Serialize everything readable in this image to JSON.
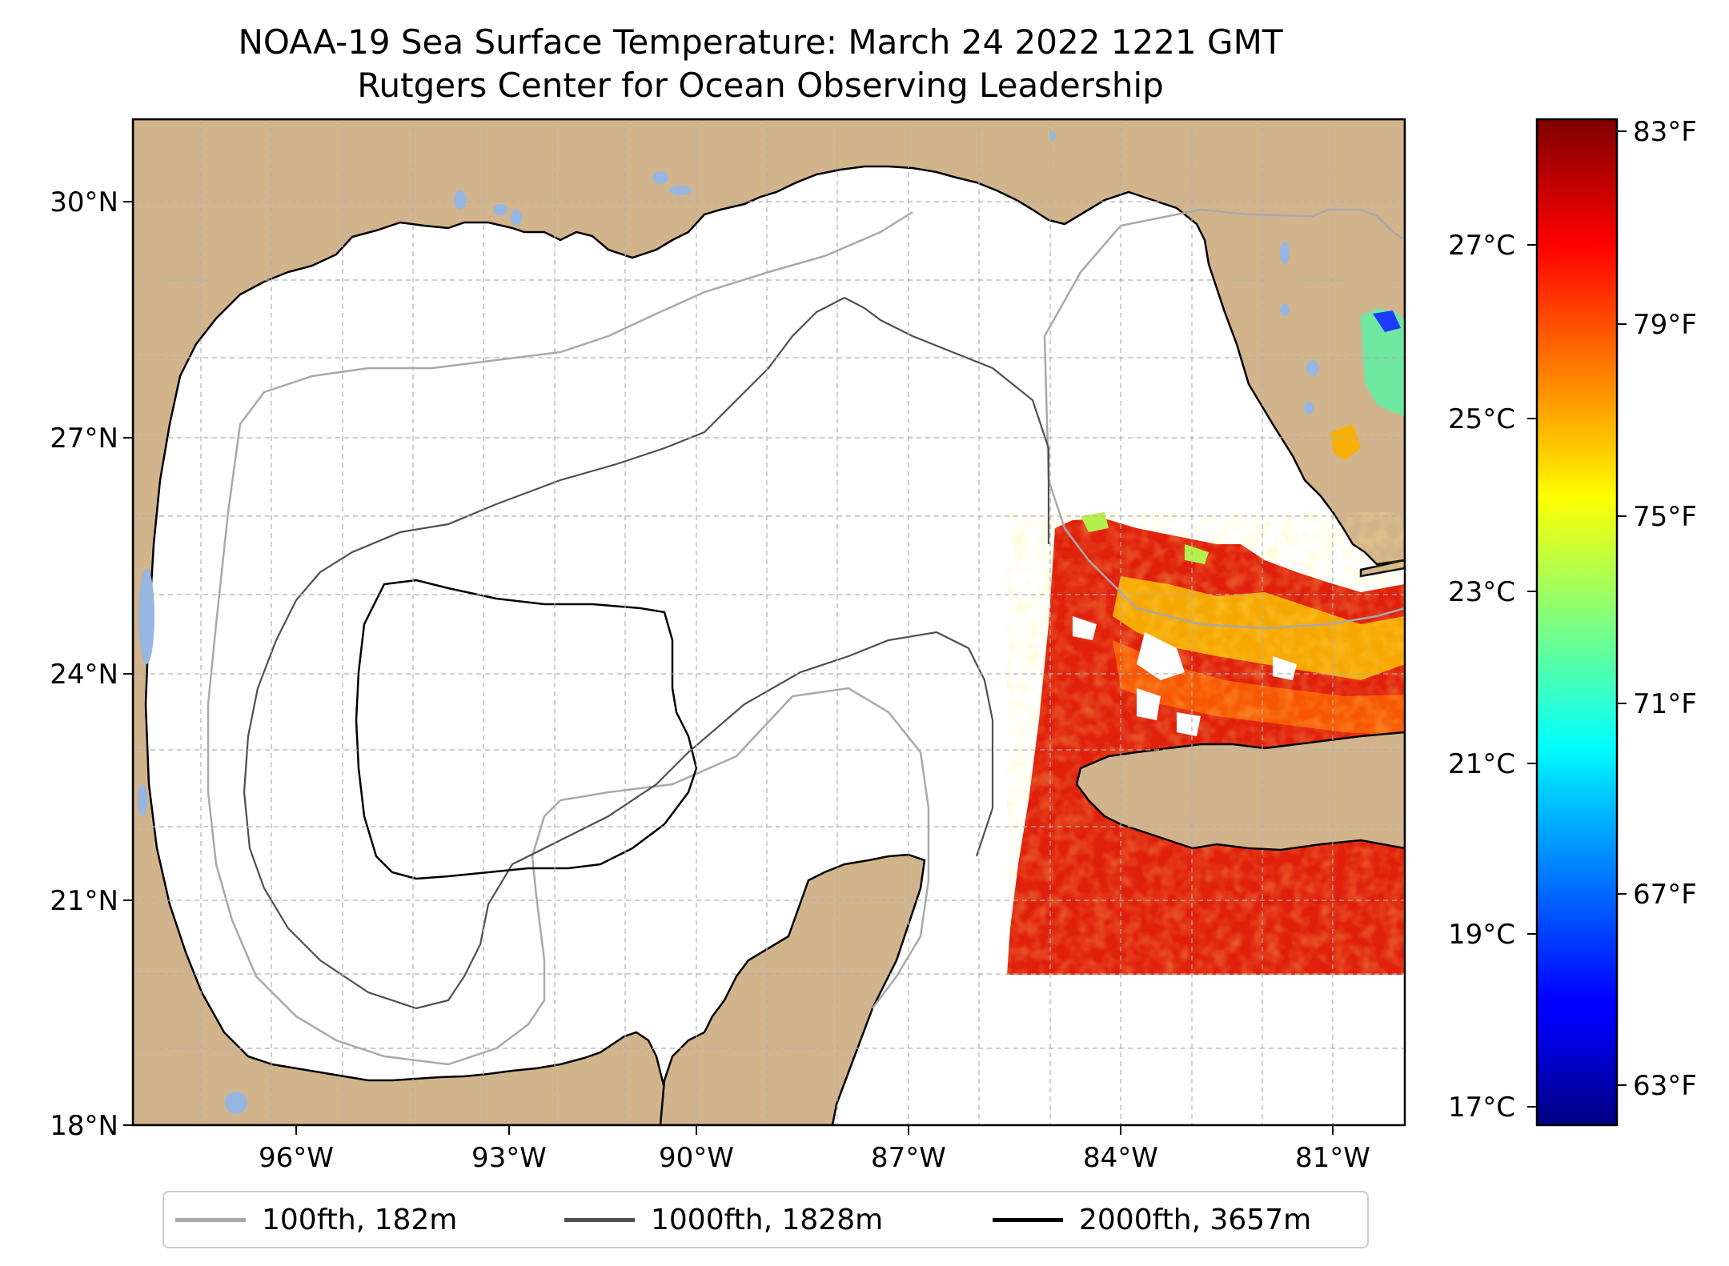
{
  "title": {
    "line1": "NOAA-19 Sea Surface Temperature: March 24 2022 1221 GMT",
    "line2": "Rutgers Center for Ocean Observing Leadership"
  },
  "map": {
    "lat_labels": [
      "30°N",
      "27°N",
      "24°N",
      "21°N",
      "18°N"
    ],
    "lon_labels": [
      "96°W",
      "93°W",
      "90°W",
      "87°W",
      "84°W",
      "81°W"
    ],
    "colors": {
      "land": "#d2b48c",
      "lakes": "#97b6e1",
      "ocean": "#ffffff",
      "coastline": "#000000",
      "gridlines": "#b0b0b0"
    }
  },
  "colorbar": {
    "celsius_labels": [
      "27°C",
      "25°C",
      "23°C",
      "21°C",
      "19°C",
      "17°C"
    ],
    "fahrenheit_labels": [
      "83°F",
      "79°F",
      "75°F",
      "71°F",
      "67°F",
      "63°F"
    ],
    "colormap": "jet"
  },
  "legend": {
    "items": [
      {
        "label": "100fth, 182m",
        "color": "#a9a9a9"
      },
      {
        "label": "1000fth, 1828m",
        "color": "#505050"
      },
      {
        "label": "2000fth, 3657m",
        "color": "#000000"
      }
    ]
  }
}
